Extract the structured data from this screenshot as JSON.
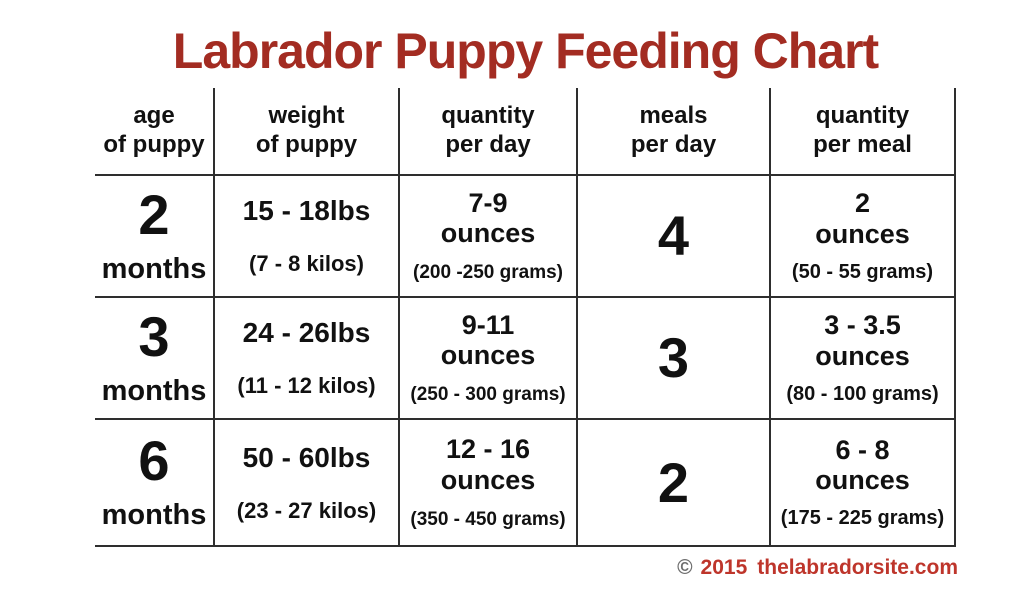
{
  "colors": {
    "title_red": "#A32C22",
    "footer_red": "#BE352B",
    "copyright_gray": "#6e6e6e",
    "grid_line": "#2e2e2e",
    "text": "#111111"
  },
  "chart_data": {
    "type": "table",
    "title": "Labrador Puppy Feeding Chart",
    "columns": [
      {
        "line1": "age",
        "line2": "of puppy"
      },
      {
        "line1": "weight",
        "line2": "of puppy"
      },
      {
        "line1": "quantity",
        "line2": "per day"
      },
      {
        "line1": "meals",
        "line2": "per day"
      },
      {
        "line1": "quantity",
        "line2": "per meal"
      }
    ],
    "rows": [
      {
        "age": {
          "value": "2",
          "unit": "months"
        },
        "weight": {
          "pounds": "15 - 18lbs",
          "kilos": "(7 - 8 kilos)"
        },
        "quantity_per_day": {
          "range": "7-9",
          "unit": "ounces",
          "grams": "(200 -250 grams)"
        },
        "meals_per_day": "4",
        "quantity_per_meal": {
          "range": "2",
          "unit": "ounces",
          "grams": "(50 - 55 grams)"
        }
      },
      {
        "age": {
          "value": "3",
          "unit": "months"
        },
        "weight": {
          "pounds": "24 - 26lbs",
          "kilos": "(11 - 12 kilos)"
        },
        "quantity_per_day": {
          "range": "9-11",
          "unit": "ounces",
          "grams": "(250 - 300 grams)"
        },
        "meals_per_day": "3",
        "quantity_per_meal": {
          "range": "3 - 3.5",
          "unit": "ounces",
          "grams": "(80 - 100 grams)"
        }
      },
      {
        "age": {
          "value": "6",
          "unit": "months"
        },
        "weight": {
          "pounds": "50 - 60lbs",
          "kilos": "(23 - 27 kilos)"
        },
        "quantity_per_day": {
          "range": "12 - 16",
          "unit": "ounces",
          "grams": "(350 - 450 grams)"
        },
        "meals_per_day": "2",
        "quantity_per_meal": {
          "range": "6 - 8",
          "unit": "ounces",
          "grams": "(175 - 225 grams)"
        }
      }
    ]
  },
  "footer": {
    "symbol": "©",
    "year": "2015",
    "site": "thelabradorsite.com"
  }
}
